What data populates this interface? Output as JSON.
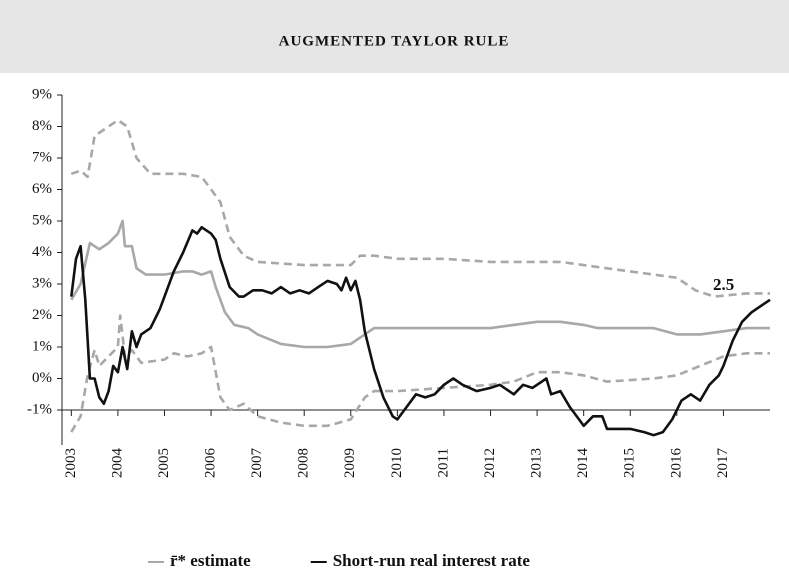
{
  "chart_data": {
    "type": "line",
    "title": "AUGMENTED TAYLOR RULE",
    "annotation": "2.5",
    "xlim": [
      2002.8,
      2018.0
    ],
    "xticks": [
      2003,
      2004,
      2005,
      2006,
      2007,
      2008,
      2009,
      2010,
      2011,
      2012,
      2013,
      2014,
      2015,
      2016,
      2017
    ],
    "ylim": [
      -2,
      9
    ],
    "yticks": [
      {
        "value": -1,
        "label": "-1%"
      },
      {
        "value": 0,
        "label": "0%"
      },
      {
        "value": 1,
        "label": "1%"
      },
      {
        "value": 2,
        "label": "2%"
      },
      {
        "value": 3,
        "label": "3%"
      },
      {
        "value": 4,
        "label": "4%"
      },
      {
        "value": 5,
        "label": "5%"
      },
      {
        "value": 6,
        "label": "6%"
      },
      {
        "value": 7,
        "label": "7%"
      },
      {
        "value": 8,
        "label": "8%"
      },
      {
        "value": 9,
        "label": "9%"
      }
    ],
    "series": [
      {
        "color": "#a8a8a8",
        "dashed": true,
        "x": [
          2003.0,
          2003.2,
          2003.35,
          2003.5,
          2003.8,
          2004.0,
          2004.2,
          2004.4,
          2004.7,
          2005.0,
          2005.4,
          2005.8,
          2006.0,
          2006.2,
          2006.4,
          2006.7,
          2007.0,
          2008.0,
          2009.0,
          2009.2,
          2009.5,
          2010.0,
          2011.0,
          2012.0,
          2013.0,
          2013.5,
          2014.0,
          2014.5,
          2015.0,
          2015.5,
          2016.0,
          2016.4,
          2016.8,
          2017.5,
          2018.0
        ],
        "values": [
          6.5,
          6.6,
          6.4,
          7.7,
          8.0,
          8.2,
          8.0,
          7.0,
          6.5,
          6.5,
          6.5,
          6.4,
          6.0,
          5.6,
          4.5,
          3.9,
          3.7,
          3.6,
          3.6,
          3.9,
          3.9,
          3.8,
          3.8,
          3.7,
          3.7,
          3.7,
          3.6,
          3.5,
          3.4,
          3.3,
          3.2,
          2.8,
          2.6,
          2.7,
          2.7
        ]
      },
      {
        "color": "#a8a8a8",
        "dashed": true,
        "x": [
          2003.0,
          2003.2,
          2003.35,
          2003.5,
          2003.6,
          2003.8,
          2004.0,
          2004.05,
          2004.15,
          2004.3,
          2004.5,
          2005.0,
          2005.2,
          2005.5,
          2005.8,
          2006.0,
          2006.2,
          2006.4,
          2006.7,
          2007.0,
          2007.5,
          2008.0,
          2008.5,
          2009.0,
          2009.3,
          2009.5,
          2010.0,
          2011.0,
          2012.0,
          2012.5,
          2013.0,
          2013.5,
          2014.0,
          2014.5,
          2015.5,
          2016.0,
          2016.5,
          2017.0,
          2017.5,
          2018.0
        ],
        "values": [
          -1.7,
          -1.2,
          0.1,
          0.9,
          0.4,
          0.7,
          1.0,
          2.0,
          0.7,
          0.9,
          0.5,
          0.6,
          0.8,
          0.7,
          0.8,
          1.0,
          -0.6,
          -1.0,
          -0.8,
          -1.2,
          -1.4,
          -1.5,
          -1.5,
          -1.3,
          -0.6,
          -0.4,
          -0.4,
          -0.3,
          -0.2,
          -0.1,
          0.2,
          0.2,
          0.1,
          -0.1,
          0.0,
          0.1,
          0.4,
          0.7,
          0.8,
          0.8
        ]
      },
      {
        "name": "r̄* estimate",
        "color": "#a8a8a8",
        "x": [
          2003.0,
          2003.2,
          2003.4,
          2003.6,
          2003.8,
          2004.0,
          2004.1,
          2004.15,
          2004.3,
          2004.4,
          2004.6,
          2005.0,
          2005.4,
          2005.6,
          2005.8,
          2006.0,
          2006.1,
          2006.3,
          2006.5,
          2006.8,
          2007.0,
          2007.5,
          2008.0,
          2008.5,
          2009.0,
          2009.3,
          2009.5,
          2010.0,
          2011.0,
          2012.0,
          2012.5,
          2013.0,
          2013.5,
          2014.0,
          2014.3,
          2015.0,
          2015.5,
          2016.0,
          2016.5,
          2017.0,
          2017.5,
          2018.0
        ],
        "values": [
          2.5,
          3.0,
          4.3,
          4.1,
          4.3,
          4.6,
          5.0,
          4.2,
          4.2,
          3.5,
          3.3,
          3.3,
          3.4,
          3.4,
          3.3,
          3.4,
          2.9,
          2.1,
          1.7,
          1.6,
          1.4,
          1.1,
          1.0,
          1.0,
          1.1,
          1.4,
          1.6,
          1.6,
          1.6,
          1.6,
          1.7,
          1.8,
          1.8,
          1.7,
          1.6,
          1.6,
          1.6,
          1.4,
          1.4,
          1.5,
          1.6,
          1.6
        ]
      },
      {
        "name": "Short-run real interest rate",
        "color": "#111111",
        "x": [
          2003.0,
          2003.1,
          2003.2,
          2003.3,
          2003.4,
          2003.5,
          2003.6,
          2003.7,
          2003.8,
          2003.9,
          2004.0,
          2004.1,
          2004.2,
          2004.3,
          2004.4,
          2004.5,
          2004.7,
          2004.9,
          2005.0,
          2005.2,
          2005.4,
          2005.6,
          2005.7,
          2005.8,
          2006.0,
          2006.1,
          2006.2,
          2006.4,
          2006.6,
          2006.7,
          2006.9,
          2007.1,
          2007.3,
          2007.5,
          2007.7,
          2007.9,
          2008.1,
          2008.3,
          2008.5,
          2008.7,
          2008.8,
          2008.9,
          2009.0,
          2009.1,
          2009.2,
          2009.3,
          2009.5,
          2009.7,
          2009.9,
          2010.0,
          2010.2,
          2010.4,
          2010.6,
          2010.8,
          2011.0,
          2011.2,
          2011.4,
          2011.7,
          2012.0,
          2012.2,
          2012.5,
          2012.7,
          2012.9,
          2013.2,
          2013.3,
          2013.5,
          2013.7,
          2013.9,
          2014.0,
          2014.2,
          2014.4,
          2014.5,
          2014.8,
          2015.0,
          2015.3,
          2015.5,
          2015.7,
          2015.9,
          2016.1,
          2016.3,
          2016.5,
          2016.7,
          2016.9,
          2017.0,
          2017.2,
          2017.4,
          2017.6,
          2017.8,
          2018.0
        ],
        "values": [
          2.6,
          3.8,
          4.2,
          2.5,
          0.0,
          0.0,
          -0.6,
          -0.8,
          -0.4,
          0.4,
          0.2,
          1.0,
          0.3,
          1.5,
          1.0,
          1.4,
          1.6,
          2.2,
          2.6,
          3.4,
          4.0,
          4.7,
          4.6,
          4.8,
          4.6,
          4.4,
          3.8,
          2.9,
          2.6,
          2.6,
          2.8,
          2.8,
          2.7,
          2.9,
          2.7,
          2.8,
          2.7,
          2.9,
          3.1,
          3.0,
          2.8,
          3.2,
          2.8,
          3.1,
          2.5,
          1.5,
          0.3,
          -0.6,
          -1.2,
          -1.3,
          -0.9,
          -0.5,
          -0.6,
          -0.5,
          -0.2,
          0.0,
          -0.2,
          -0.4,
          -0.3,
          -0.2,
          -0.5,
          -0.2,
          -0.3,
          0.0,
          -0.5,
          -0.4,
          -0.9,
          -1.3,
          -1.5,
          -1.2,
          -1.2,
          -1.6,
          -1.6,
          -1.6,
          -1.7,
          -1.8,
          -1.7,
          -1.3,
          -0.7,
          -0.5,
          -0.7,
          -0.2,
          0.1,
          0.4,
          1.2,
          1.8,
          2.1,
          2.3,
          2.5
        ]
      }
    ]
  }
}
